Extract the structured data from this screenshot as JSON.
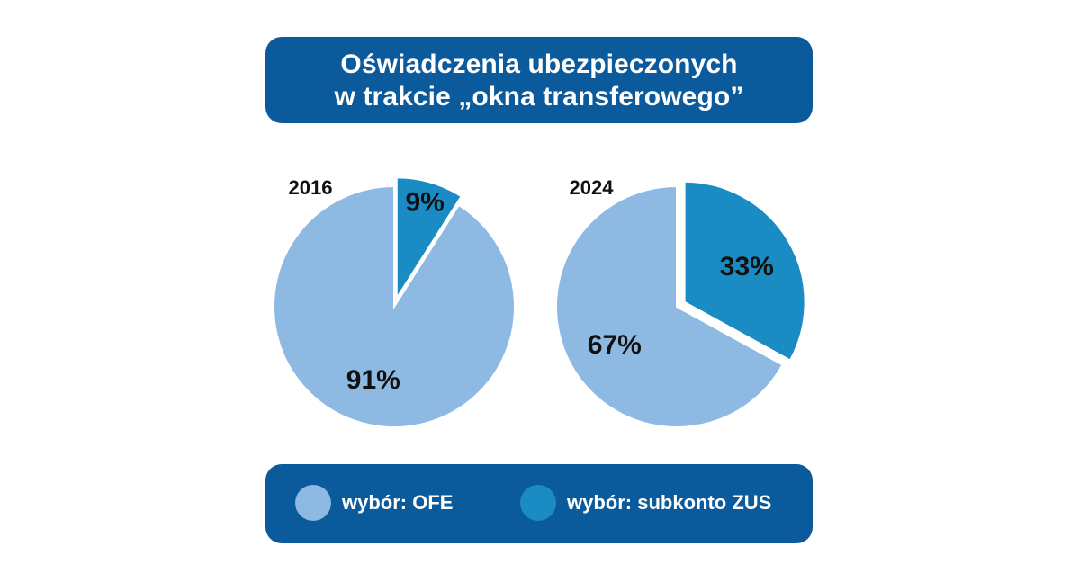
{
  "title": {
    "line1": "Oświadczenia ubezpieczonych",
    "line2": "w trakcie „okna transferowego”"
  },
  "colors": {
    "header_bg": "#0b5a9c",
    "ofe": "#8db9e2",
    "zus": "#1b8bc4"
  },
  "legend": [
    {
      "label": "wybór: OFE",
      "color": "#8db9e2"
    },
    {
      "label": "wybór: subkonto ZUS",
      "color": "#1b8bc4"
    }
  ],
  "chart_data": [
    {
      "type": "pie",
      "title": "2016",
      "slices": [
        {
          "label": "wybór: subkonto ZUS",
          "value": 9,
          "display": "9%",
          "color": "#1b8bc4",
          "exploded": true
        },
        {
          "label": "wybór: OFE",
          "value": 91,
          "display": "91%",
          "color": "#8db9e2",
          "exploded": false
        }
      ]
    },
    {
      "type": "pie",
      "title": "2024",
      "slices": [
        {
          "label": "wybór: subkonto ZUS",
          "value": 33,
          "display": "33%",
          "color": "#1b8bc4",
          "exploded": true
        },
        {
          "label": "wybór: OFE",
          "value": 67,
          "display": "67%",
          "color": "#8db9e2",
          "exploded": false
        }
      ]
    }
  ]
}
